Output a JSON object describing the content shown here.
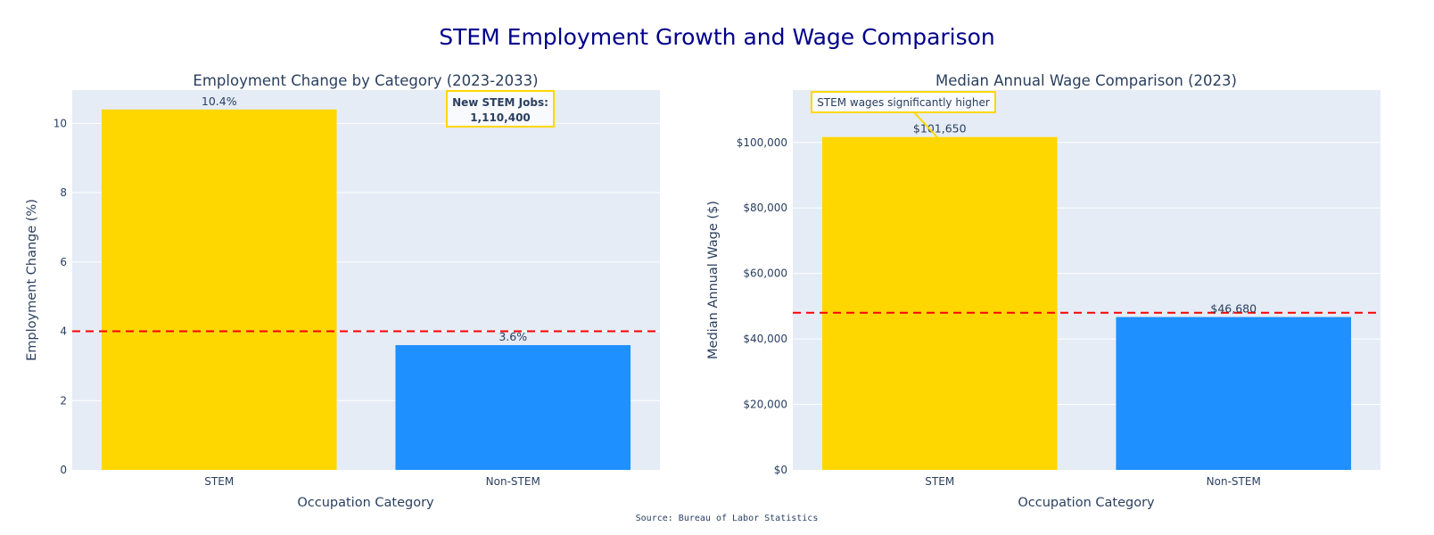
{
  "title": "STEM Employment Growth and Wage Comparison",
  "source": "Source: Bureau of Labor Statistics",
  "colors": {
    "title": "#00008B",
    "stem": "#FFD700",
    "non_stem": "#1E90FF",
    "reference_line": "#FF0000",
    "plot_background": "#E5ECF6",
    "grid": "#FFFFFF",
    "annotation_border": "#FFD700"
  },
  "chart_data": [
    {
      "type": "bar",
      "title": "Employment Change by Category (2023-2033)",
      "xlabel": "Occupation Category",
      "ylabel": "Employment Change (%)",
      "categories": [
        "STEM",
        "Non-STEM"
      ],
      "values": [
        10.4,
        3.6
      ],
      "value_labels": [
        "10.4%",
        "3.6%"
      ],
      "ylim": [
        0,
        10.96
      ],
      "yticks": [
        0,
        2,
        4,
        6,
        8,
        10
      ],
      "ytick_labels": [
        "0",
        "2",
        "4",
        "6",
        "8",
        "10"
      ],
      "reference_line": {
        "y": 4,
        "style": "dashed"
      },
      "annotation": {
        "line1": "New STEM Jobs:",
        "line2": "1,110,400"
      },
      "grid": true
    },
    {
      "type": "bar",
      "title": "Median Annual Wage Comparison (2023)",
      "xlabel": "Occupation Category",
      "ylabel": "Median Annual Wage ($)",
      "categories": [
        "STEM",
        "Non-STEM"
      ],
      "values": [
        101650,
        46680
      ],
      "value_labels": [
        "$101,650",
        "$46,680"
      ],
      "ylim": [
        0,
        116000
      ],
      "yticks": [
        0,
        20000,
        40000,
        60000,
        80000,
        100000
      ],
      "ytick_labels": [
        "$0",
        "$20,000",
        "$40,000",
        "$60,000",
        "$80,000",
        "$100,000"
      ],
      "reference_line": {
        "y": 48000,
        "style": "dashed"
      },
      "annotation": {
        "text": "STEM wages significantly higher"
      },
      "grid": true
    }
  ]
}
